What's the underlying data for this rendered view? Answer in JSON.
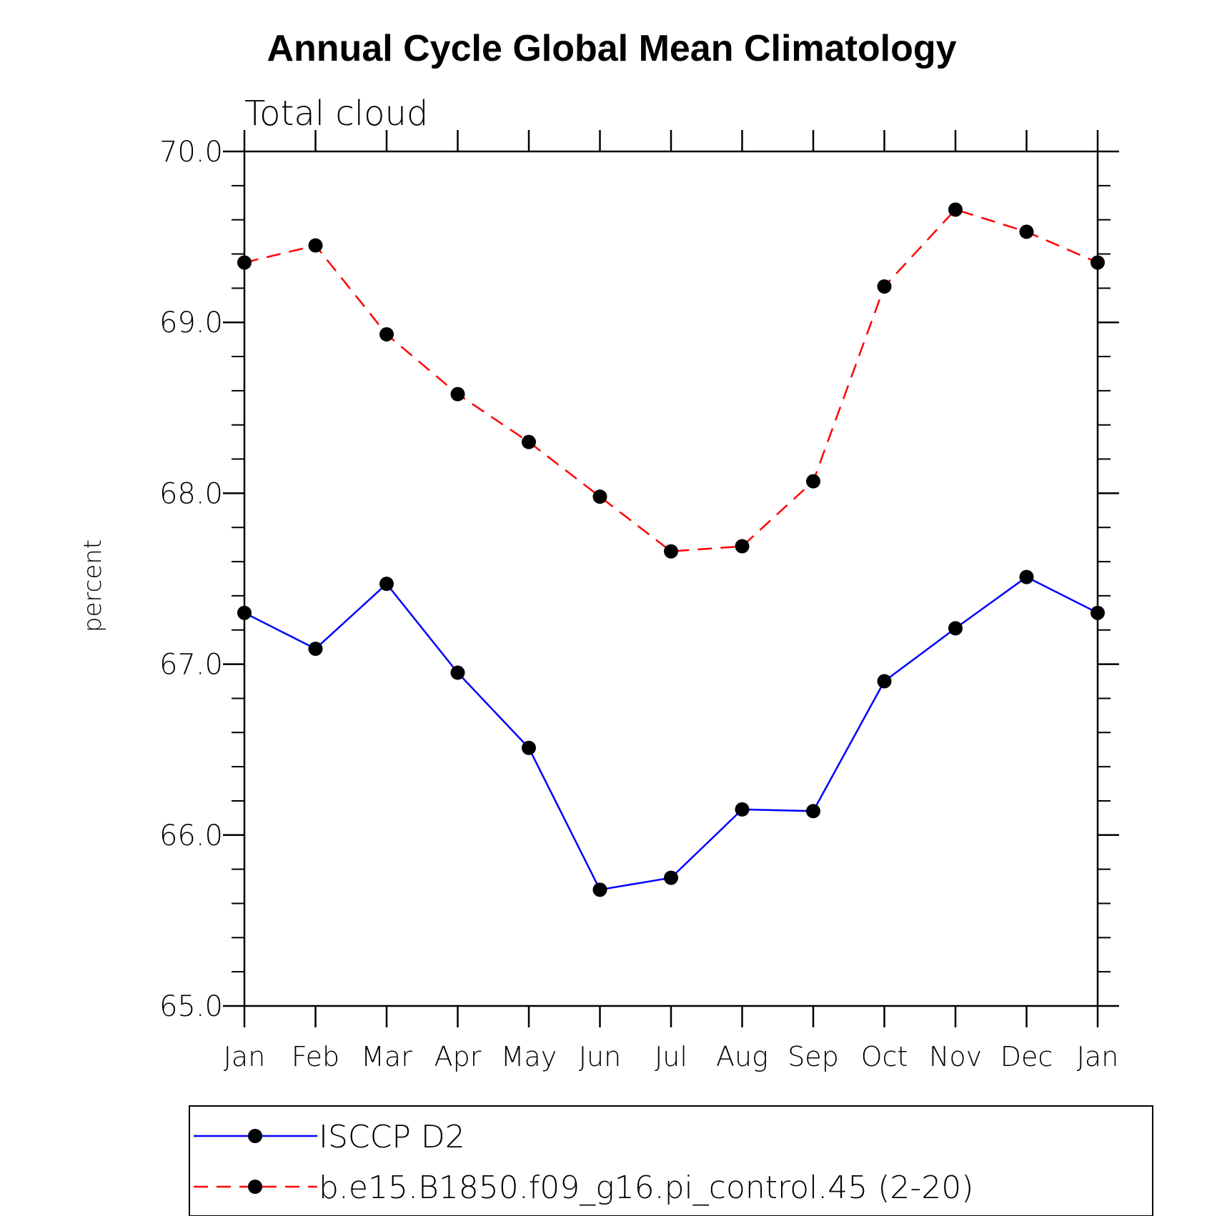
{
  "chart_data": {
    "type": "line",
    "title": "Annual Cycle Global Mean Climatology",
    "subtitle": "Total cloud",
    "xlabel": "",
    "ylabel": "percent",
    "categories": [
      "Jan",
      "Feb",
      "Mar",
      "Apr",
      "May",
      "Jun",
      "Jul",
      "Aug",
      "Sep",
      "Oct",
      "Nov",
      "Dec",
      "Jan"
    ],
    "ylim": [
      65.0,
      70.0
    ],
    "yticks": [
      "65.0",
      "66.0",
      "67.0",
      "68.0",
      "69.0",
      "70.0"
    ],
    "grid": false,
    "legend_position": "bottom",
    "series": [
      {
        "name": "ISCCP D2",
        "color": "#0000ff",
        "dash": "solid",
        "marker": "filled-circle",
        "values": [
          67.3,
          67.09,
          67.47,
          66.95,
          66.51,
          65.68,
          65.75,
          66.15,
          66.14,
          66.9,
          67.21,
          67.51,
          67.3
        ]
      },
      {
        "name": "b.e15.B1850.f09_g16.pi_control.45 (2-20)",
        "color": "#ff0000",
        "dash": "dashed",
        "marker": "filled-circle",
        "values": [
          69.35,
          69.45,
          68.93,
          68.58,
          68.3,
          67.98,
          67.66,
          67.69,
          68.07,
          69.21,
          69.66,
          69.53,
          69.35
        ]
      }
    ]
  }
}
